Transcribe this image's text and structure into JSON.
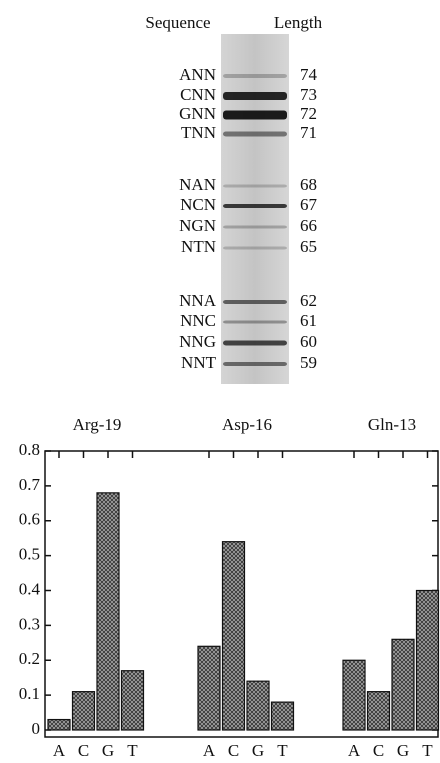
{
  "gel": {
    "headers": [
      "Sequence",
      "Length"
    ],
    "rows": [
      {
        "sequence": "ANN",
        "length": 74
      },
      {
        "sequence": "CNN",
        "length": 73
      },
      {
        "sequence": "GNN",
        "length": 72
      },
      {
        "sequence": "TNN",
        "length": 71
      },
      {
        "sequence": "NAN",
        "length": 68
      },
      {
        "sequence": "NCN",
        "length": 67
      },
      {
        "sequence": "NGN",
        "length": 66
      },
      {
        "sequence": "NTN",
        "length": 65
      },
      {
        "sequence": "NNA",
        "length": 62
      },
      {
        "sequence": "NNC",
        "length": 61
      },
      {
        "sequence": "NNG",
        "length": 60
      },
      {
        "sequence": "NNT",
        "length": 59
      }
    ]
  },
  "chart_data": {
    "type": "bar",
    "color": "#555555",
    "ylim": [
      0,
      0.8
    ],
    "yticks": [
      0,
      0.1,
      0.2,
      0.3,
      0.4,
      0.5,
      0.6,
      0.7,
      0.8
    ],
    "groups": [
      {
        "name": "Arg-19",
        "categories": [
          "A",
          "C",
          "G",
          "T"
        ],
        "values": [
          0.03,
          0.11,
          0.68,
          0.17
        ]
      },
      {
        "name": "Asp-16",
        "categories": [
          "A",
          "C",
          "G",
          "T"
        ],
        "values": [
          0.24,
          0.54,
          0.14,
          0.08
        ]
      },
      {
        "name": "Gln-13",
        "categories": [
          "A",
          "C",
          "G",
          "T"
        ],
        "values": [
          0.2,
          0.11,
          0.26,
          0.4
        ]
      }
    ]
  }
}
